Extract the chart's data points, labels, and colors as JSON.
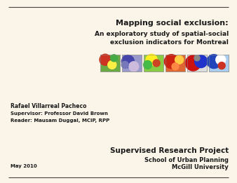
{
  "background_color": "#faf5e8",
  "line_color": "#444444",
  "title_line1": "Mapping social exclusion:",
  "title_line2": "An exploratory study of spatial-social",
  "title_line3": "exclusion indicators for Montreal",
  "author_line1": "Rafael Villarreal Pacheco",
  "author_line2": "Supervisor: Professor David Brown",
  "author_line3": "Reader: Mausam Duggal, MCIP, RPP",
  "footer_line1": "Supervised Research Project",
  "footer_line2": "School of Urban Planning",
  "footer_line3": "McGill University",
  "date": "May 2010",
  "title_fontsize": 8.0,
  "subtitle_fontsize": 6.5,
  "author_fontsize": 5.5,
  "author_sub_fontsize": 5.0,
  "footer_title_fontsize": 7.5,
  "footer_sub_fontsize": 6.0,
  "date_fontsize": 5.0
}
